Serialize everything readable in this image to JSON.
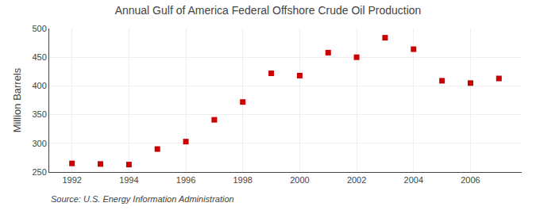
{
  "chart_data": {
    "type": "scatter",
    "title": "Annual Gulf of America Federal Offshore Crude Oil Production",
    "ylabel": "Million Barrels",
    "annotations": [
      "Source: U.S. Energy Information Administration"
    ],
    "x": [
      1992,
      1993,
      1994,
      1995,
      1996,
      1997,
      1998,
      1999,
      2000,
      2001,
      2002,
      2003,
      2004,
      2005,
      2006,
      2007
    ],
    "values": [
      265,
      264,
      263,
      290,
      303,
      341,
      372,
      422,
      418,
      458,
      450,
      484,
      464,
      409,
      405,
      413
    ],
    "color": "#cc0000",
    "marker": "square",
    "xlim": [
      1991.2,
      2007.8
    ],
    "xticks": [
      1992,
      1994,
      1996,
      1998,
      2000,
      2002,
      2004,
      2006
    ],
    "ylim": [
      250,
      500
    ],
    "yticks": [
      250,
      300,
      350,
      400,
      450,
      500
    ],
    "grid": true
  }
}
